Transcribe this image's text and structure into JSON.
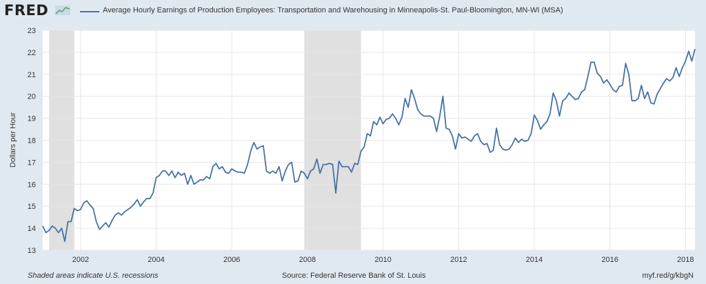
{
  "header": {
    "logo_text": "FRED",
    "logo_icon": "fred-sparkline-icon",
    "legend_label": "Average Hourly Earnings of Production Employees: Transportation and Warehousing in Minneapolis-St. Paul-Bloomington, MN-WI (MSA)"
  },
  "footer": {
    "note": "Shaded areas indicate U.S. recessions",
    "source": "Source: Federal Reserve Bank of St. Louis",
    "link": "myf.red/g/kbgN"
  },
  "chart_data": {
    "type": "line",
    "title": "Average Hourly Earnings of Production Employees: Transportation and Warehousing in Minneapolis-St. Paul-Bloomington, MN-WI (MSA)",
    "ylabel": "Dollars per Hour",
    "xlabel": "",
    "xlim": [
      "2001-01",
      "2018-04"
    ],
    "ylim": [
      13,
      23
    ],
    "x_ticks": [
      "2002",
      "2004",
      "2006",
      "2008",
      "2010",
      "2012",
      "2014",
      "2016",
      "2018"
    ],
    "y_ticks": [
      13,
      14,
      15,
      16,
      17,
      18,
      19,
      20,
      21,
      22,
      23
    ],
    "grid": true,
    "legend_position": "top",
    "line_color": "#4572a7",
    "recessions": [
      {
        "start": "2001-03",
        "end": "2001-11"
      },
      {
        "start": "2007-12",
        "end": "2009-06"
      }
    ],
    "series": [
      {
        "name": "Average Hourly Earnings of Production Employees: Transportation and Warehousing in Minneapolis-St. Paul-Bloomington, MN-WI (MSA)",
        "start": "2001-01",
        "frequency": "monthly",
        "values": [
          14.1,
          13.8,
          13.9,
          14.1,
          14.0,
          13.8,
          14.0,
          13.4,
          14.3,
          14.3,
          14.9,
          14.8,
          14.85,
          15.15,
          15.25,
          15.05,
          14.9,
          14.3,
          13.95,
          14.1,
          14.25,
          14.05,
          14.35,
          14.6,
          14.7,
          14.6,
          14.75,
          14.85,
          14.95,
          15.1,
          15.3,
          15.0,
          15.2,
          15.35,
          15.35,
          15.6,
          16.3,
          16.4,
          16.6,
          16.6,
          16.4,
          16.6,
          16.3,
          16.55,
          16.4,
          16.5,
          16.0,
          16.4,
          16.0,
          16.1,
          16.2,
          16.2,
          16.35,
          16.25,
          16.8,
          16.95,
          16.7,
          16.8,
          16.55,
          16.5,
          16.7,
          16.6,
          16.55,
          16.55,
          16.5,
          16.9,
          17.5,
          17.9,
          17.6,
          17.7,
          17.75,
          16.6,
          16.5,
          16.6,
          16.5,
          16.8,
          16.15,
          16.6,
          16.9,
          17.0,
          16.1,
          16.15,
          16.6,
          16.5,
          16.25,
          16.6,
          16.7,
          17.15,
          16.5,
          16.9,
          16.9,
          16.95,
          16.9,
          15.6,
          17.05,
          16.8,
          16.8,
          16.8,
          16.55,
          16.95,
          16.9,
          17.5,
          17.7,
          18.3,
          18.2,
          18.85,
          18.7,
          19.05,
          18.75,
          18.95,
          19.0,
          19.2,
          19.0,
          18.7,
          19.05,
          19.9,
          19.5,
          20.3,
          19.9,
          19.4,
          19.2,
          19.1,
          19.1,
          19.1,
          19.0,
          18.4,
          19.1,
          20.0,
          18.55,
          18.5,
          18.2,
          17.6,
          18.3,
          18.1,
          18.15,
          18.05,
          17.95,
          18.2,
          18.3,
          17.95,
          17.8,
          17.85,
          17.45,
          17.55,
          18.55,
          17.8,
          17.6,
          17.55,
          17.6,
          17.8,
          18.1,
          17.9,
          18.05,
          17.95,
          18.0,
          18.3,
          19.15,
          18.9,
          18.5,
          18.7,
          18.85,
          19.2,
          20.15,
          19.8,
          19.1,
          19.8,
          19.9,
          20.15,
          20.0,
          19.85,
          19.9,
          20.2,
          20.3,
          20.9,
          21.55,
          21.55,
          21.05,
          20.9,
          20.6,
          20.75,
          20.55,
          20.3,
          20.2,
          20.45,
          20.5,
          21.5,
          21.0,
          19.8,
          19.8,
          19.9,
          20.5,
          19.9,
          20.2,
          19.7,
          19.65,
          20.1,
          20.35,
          20.6,
          20.8,
          20.7,
          20.85,
          21.3,
          20.9,
          21.3,
          21.6,
          22.05,
          21.6,
          22.15
        ]
      }
    ]
  }
}
